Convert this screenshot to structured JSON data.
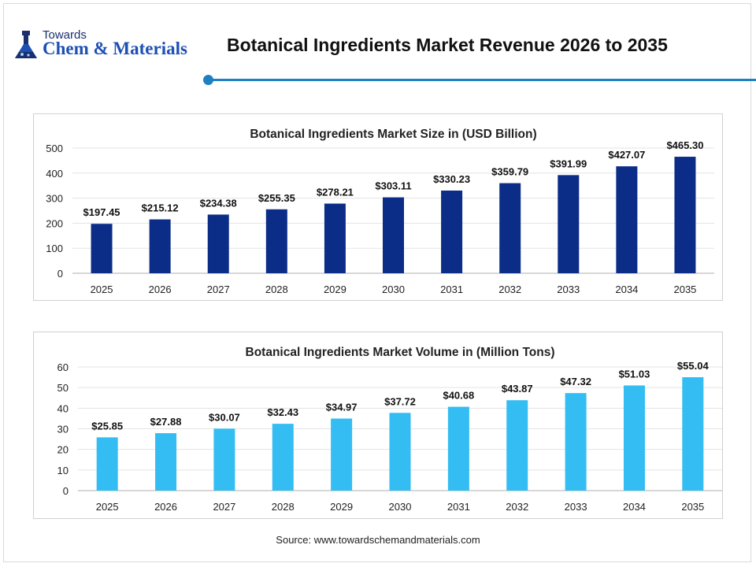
{
  "header": {
    "logo_top": "Towards",
    "logo_main": "Chem & Materials",
    "title": "Botanical Ingredients Market Revenue 2026 to 2035"
  },
  "colors": {
    "accent": "#1f7fc3",
    "size_bars": "#0b2d87",
    "volume_bars": "#33bdf2"
  },
  "icons": [
    "flask-logo-icon"
  ],
  "chart_data": [
    {
      "type": "bar",
      "title": "Botanical Ingredients Market Size in (USD Billion)",
      "categories": [
        "2025",
        "2026",
        "2027",
        "2028",
        "2029",
        "2030",
        "2031",
        "2032",
        "2033",
        "2034",
        "2035"
      ],
      "values": [
        197.45,
        215.12,
        234.38,
        255.35,
        278.21,
        303.11,
        330.23,
        359.79,
        391.99,
        427.07,
        465.3
      ],
      "labels": [
        "$197.45",
        "$215.12",
        "$234.38",
        "$255.35",
        "$278.21",
        "$303.11",
        "$330.23",
        "$359.79",
        "$391.99",
        "$427.07",
        "$465.30"
      ],
      "yticks": [
        "0",
        "100",
        "200",
        "300",
        "400",
        "500"
      ],
      "ylim": [
        0,
        500
      ],
      "xlabel": "",
      "ylabel": "",
      "grid": true,
      "legend": "none"
    },
    {
      "type": "bar",
      "title": "Botanical Ingredients Market Volume in (Million Tons)",
      "categories": [
        "2025",
        "2026",
        "2027",
        "2028",
        "2029",
        "2030",
        "2031",
        "2032",
        "2033",
        "2034",
        "2035"
      ],
      "values": [
        25.85,
        27.88,
        30.07,
        32.43,
        34.97,
        37.72,
        40.68,
        43.87,
        47.32,
        51.03,
        55.04
      ],
      "labels": [
        "$25.85",
        "$27.88",
        "$30.07",
        "$32.43",
        "$34.97",
        "$37.72",
        "$40.68",
        "$43.87",
        "$47.32",
        "$51.03",
        "$55.04"
      ],
      "yticks": [
        "0",
        "10",
        "20",
        "30",
        "40",
        "50",
        "60"
      ],
      "ylim": [
        0,
        60
      ],
      "xlabel": "",
      "ylabel": "",
      "grid": true,
      "legend": "none"
    }
  ],
  "footer": {
    "source": "Source: www.towardschemandmaterials.com"
  }
}
